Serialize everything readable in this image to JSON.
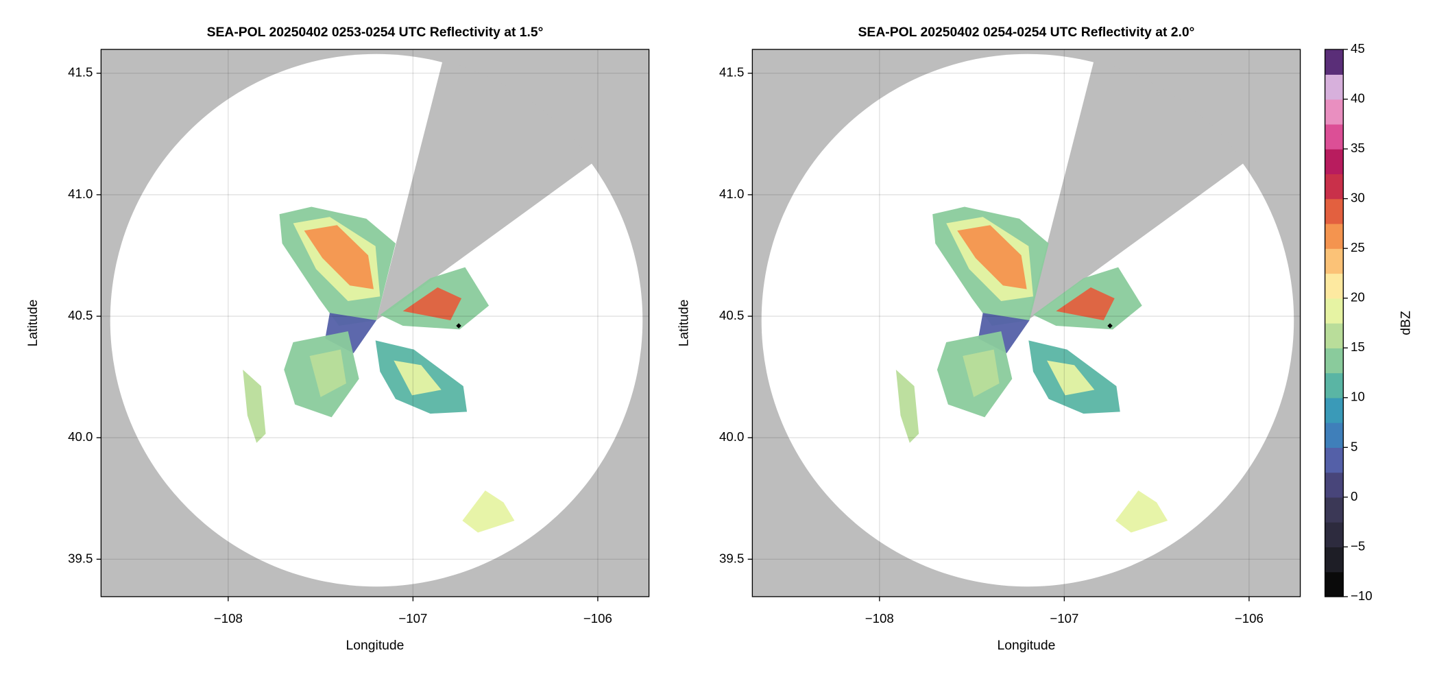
{
  "chart_data": [
    {
      "type": "map",
      "title": "SEA-POL 20250402 0253-0254 UTC Reflectivity at 1.5°",
      "xlabel": "Longitude",
      "ylabel": "Latitude",
      "xlim": [
        -108.688,
        -105.723
      ],
      "ylim": [
        39.346,
        41.598
      ],
      "xticks": [
        {
          "value": -108,
          "label": "−108"
        },
        {
          "value": -107,
          "label": "−107"
        },
        {
          "value": -106,
          "label": "−106"
        }
      ],
      "yticks": [
        39.5,
        {
          "value": 40,
          "label": "40.0"
        },
        40.5,
        {
          "value": 41,
          "label": "41.0"
        },
        41.5
      ],
      "grid": true
    },
    {
      "type": "map",
      "title": "SEA-POL 20250402 0254-0254 UTC Reflectivity at 2.0°",
      "xlabel": "Longitude",
      "ylabel": "Latitude",
      "xlim": [
        -108.688,
        -105.723
      ],
      "ylim": [
        39.346,
        41.598
      ],
      "xticks": [
        {
          "value": -108,
          "label": "−108"
        },
        {
          "value": -107,
          "label": "−107"
        },
        {
          "value": -106,
          "label": "−106"
        }
      ],
      "yticks": [
        39.5,
        {
          "value": 40,
          "label": "40.0"
        },
        40.5,
        {
          "value": 41,
          "label": "41.0"
        },
        41.5
      ],
      "grid": true
    }
  ],
  "colorbar": {
    "label": "dBZ",
    "clim": [
      -10,
      45
    ],
    "ticks": [
      {
        "value": -10,
        "label": "−10"
      },
      {
        "value": -5,
        "label": "−5"
      },
      0,
      5,
      10,
      15,
      20,
      25,
      30,
      35,
      40,
      45
    ],
    "colors": [
      "#0a0a0a",
      "#1e1e26",
      "#2d2b3e",
      "#3b3856",
      "#48457a",
      "#5460a8",
      "#3f7fba",
      "#3a9ab8",
      "#5ab5a4",
      "#8acb9c",
      "#b9dd9a",
      "#e6f3a3",
      "#fde9a0",
      "#fbc277",
      "#f4944f",
      "#e3603f",
      "#c9304a",
      "#b81c5e",
      "#dc4f96",
      "#e98fc0",
      "#d7b0dc",
      "#5a2e78"
    ]
  }
}
